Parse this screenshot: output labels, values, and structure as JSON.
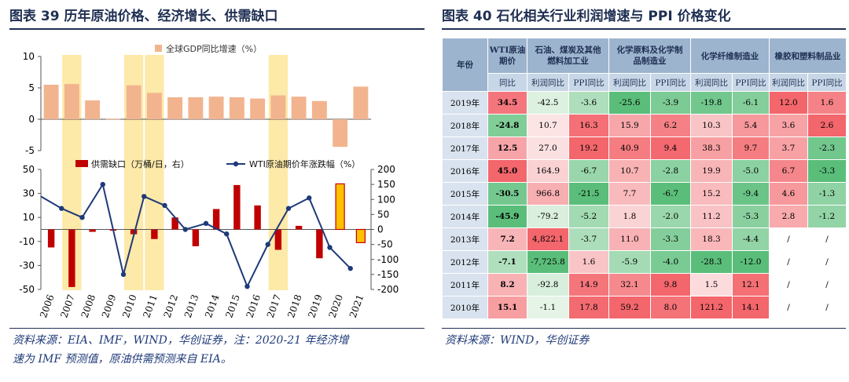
{
  "left_panel": {
    "title": "图表 39   历年原油价格、经济增长、供需缺口",
    "source_line1": "资料来源：EIA、IMF，WIND，华创证券，注：2020-21 年经济增",
    "source_line2": "速为 IMF 预测值，原油供需预测来自 EIA。"
  },
  "right_panel": {
    "title": "图表 40   石化相关行业利润增速与 PPI 价格变化",
    "source": "资料来源：WIND，华创证券"
  },
  "colors": {
    "navy": "#1f2f52",
    "gdp_bar": "#f2b48e",
    "gap_bar": "#c00000",
    "gap_highlight": "#ffc000",
    "wti_line": "#1f3a78",
    "highlight_band": "#fde9a8"
  },
  "chart_data": [
    {
      "type": "bar",
      "categories": [
        "2006",
        "2007",
        "2008",
        "2009",
        "2010",
        "2011",
        "2012",
        "2013",
        "2014",
        "2015",
        "2016",
        "2017",
        "2018",
        "2019",
        "2020",
        "2021"
      ],
      "series": [
        {
          "name": "全球GDP同比增速（%）",
          "values": [
            5.5,
            5.6,
            3.0,
            0.1,
            5.4,
            4.2,
            3.5,
            3.5,
            3.6,
            3.5,
            3.3,
            3.8,
            3.6,
            2.9,
            -4.4,
            5.2
          ]
        }
      ],
      "ylim": [
        -5,
        10
      ],
      "yticks": [
        -5,
        0,
        5,
        10
      ],
      "highlight_years": [
        "2007",
        "2010",
        "2011",
        "2017"
      ],
      "legend_position": "top"
    },
    {
      "type": "bar",
      "categories": [
        "2006",
        "2007",
        "2008",
        "2009",
        "2010",
        "2011",
        "2012",
        "2013",
        "2014",
        "2015",
        "2016",
        "2017",
        "2018",
        "2019",
        "2020",
        "2021"
      ],
      "series": [
        {
          "name": "供需缺口（万桶/日，右）",
          "values": [
            -15,
            -48,
            -2,
            -1,
            -4,
            -8,
            10,
            -14,
            17,
            37,
            20,
            -17,
            3,
            -24,
            38,
            -11
          ],
          "axis": "left"
        },
        {
          "name": "WTI原油期价年涨跌幅（%）",
          "values": [
            110,
            70,
            40,
            150,
            -150,
            110,
            80,
            0,
            20,
            -15,
            -190,
            -50,
            70,
            105,
            -60,
            -130
          ],
          "axis": "right"
        }
      ],
      "highlighted_gap_years": [
        "2020",
        "2021"
      ],
      "ylim_left": [
        -50,
        50
      ],
      "yticks_left": [
        -50,
        -30,
        -10,
        10,
        30,
        50
      ],
      "ylim_right": [
        -200,
        200
      ],
      "yticks_right": [
        -200,
        -150,
        -100,
        -50,
        0,
        50,
        100,
        150,
        200
      ],
      "legend_position": "top"
    },
    {
      "type": "table",
      "corner_header": "年份",
      "group_headers": [
        "WTI原油期价",
        "石油、煤炭及其他燃料加工业",
        "化学原料及化学制品制造业",
        "化学纤维制造业",
        "橡胶和塑料制品业"
      ],
      "sub_headers": [
        "同比",
        "利润同比",
        "PPI同比",
        "利润同比",
        "PPI同比",
        "利润同比",
        "PPI同比",
        "利润同比",
        "PPI同比"
      ],
      "rows": [
        {
          "year": "2019年",
          "values": [
            "34.5",
            "-42.5",
            "-3.6",
            "-25.6",
            "-3.9",
            "-19.8",
            "-6.1",
            "12.0",
            "1.6"
          ]
        },
        {
          "year": "2018年",
          "values": [
            "-24.8",
            "10.7",
            "16.3",
            "15.9",
            "6.2",
            "10.3",
            "5.4",
            "3.6",
            "2.6"
          ]
        },
        {
          "year": "2017年",
          "values": [
            "12.5",
            "27.0",
            "19.2",
            "40.9",
            "9.4",
            "38.3",
            "9.7",
            "3.7",
            "-2.3"
          ]
        },
        {
          "year": "2016年",
          "values": [
            "45.0",
            "164.9",
            "-6.7",
            "10.7",
            "-2.8",
            "19.9",
            "-5.0",
            "6.7",
            "-3.3"
          ]
        },
        {
          "year": "2015年",
          "values": [
            "-30.5",
            "966.8",
            "-21.5",
            "7.7",
            "-6.7",
            "15.2",
            "-9.4",
            "4.6",
            "-1.3"
          ]
        },
        {
          "year": "2014年",
          "values": [
            "-45.9",
            "-79.2",
            "-5.2",
            "1.8",
            "-2.0",
            "11.2",
            "-5.3",
            "2.8",
            "-1.2"
          ]
        },
        {
          "year": "2013年",
          "values": [
            "7.2",
            "4,822.1",
            "-3.7",
            "11.0",
            "-3.3",
            "18.3",
            "-4.4",
            "/",
            "/"
          ]
        },
        {
          "year": "2012年",
          "values": [
            "-7.1",
            "-7,725.8",
            "1.6",
            "-5.9",
            "-4.0",
            "-28.3",
            "-12.0",
            "/",
            "/"
          ]
        },
        {
          "year": "2011年",
          "values": [
            "8.2",
            "-92.8",
            "14.9",
            "32.1",
            "9.8",
            "1.5",
            "12.1",
            "/",
            "/"
          ]
        },
        {
          "year": "2010年",
          "values": [
            "15.1",
            "-1.1",
            "17.8",
            "59.2",
            "8.0",
            "121.2",
            "14.1",
            "/",
            "/"
          ]
        }
      ]
    }
  ]
}
